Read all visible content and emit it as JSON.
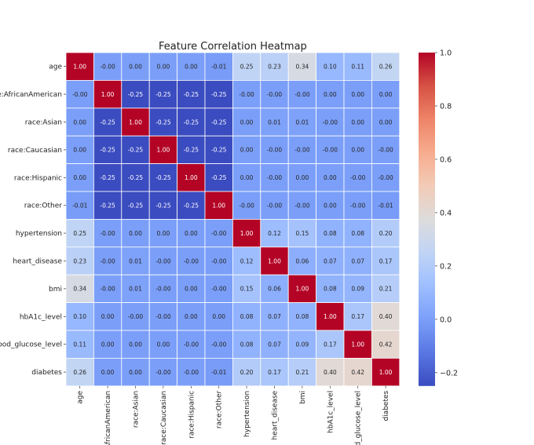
{
  "chart_data": {
    "type": "heatmap",
    "title": "Feature Correlation Heatmap",
    "row_labels": [
      "age",
      "race:AfricanAmerican",
      "race:Asian",
      "race:Caucasian",
      "race:Hispanic",
      "race:Other",
      "hypertension",
      "heart_disease",
      "bmi",
      "hbA1c_level",
      "blood_glucose_level",
      "diabetes"
    ],
    "col_labels": [
      "age",
      "race:AfricanAmerican",
      "race:Asian",
      "race:Caucasian",
      "race:Hispanic",
      "race:Other",
      "hypertension",
      "heart_disease",
      "bmi",
      "hbA1c_level",
      "blood_glucose_level",
      "diabetes"
    ],
    "values": [
      [
        1.0,
        -0.0,
        0.0,
        0.0,
        0.0,
        -0.01,
        0.25,
        0.23,
        0.34,
        0.1,
        0.11,
        0.26
      ],
      [
        -0.0,
        1.0,
        -0.25,
        -0.25,
        -0.25,
        -0.25,
        -0.0,
        -0.0,
        -0.0,
        0.0,
        0.0,
        0.0
      ],
      [
        0.0,
        -0.25,
        1.0,
        -0.25,
        -0.25,
        -0.25,
        0.0,
        0.01,
        0.01,
        -0.0,
        0.0,
        0.0
      ],
      [
        0.0,
        -0.25,
        -0.25,
        1.0,
        -0.25,
        -0.25,
        0.0,
        -0.0,
        -0.0,
        -0.0,
        0.0,
        -0.0
      ],
      [
        0.0,
        -0.25,
        -0.25,
        -0.25,
        1.0,
        -0.25,
        0.0,
        -0.0,
        0.0,
        0.0,
        -0.0,
        -0.0
      ],
      [
        -0.01,
        -0.25,
        -0.25,
        -0.25,
        -0.25,
        1.0,
        -0.0,
        -0.0,
        -0.0,
        0.0,
        -0.0,
        -0.01
      ],
      [
        0.25,
        -0.0,
        0.0,
        0.0,
        0.0,
        -0.0,
        1.0,
        0.12,
        0.15,
        0.08,
        0.08,
        0.2
      ],
      [
        0.23,
        -0.0,
        0.01,
        -0.0,
        -0.0,
        -0.0,
        0.12,
        1.0,
        0.06,
        0.07,
        0.07,
        0.17
      ],
      [
        0.34,
        -0.0,
        0.01,
        -0.0,
        0.0,
        -0.0,
        0.15,
        0.06,
        1.0,
        0.08,
        0.09,
        0.21
      ],
      [
        0.1,
        0.0,
        -0.0,
        -0.0,
        0.0,
        0.0,
        0.08,
        0.07,
        0.08,
        1.0,
        0.17,
        0.4
      ],
      [
        0.11,
        0.0,
        0.0,
        0.0,
        -0.0,
        -0.0,
        0.08,
        0.07,
        0.09,
        0.17,
        1.0,
        0.42
      ],
      [
        0.26,
        0.0,
        0.0,
        -0.0,
        -0.0,
        -0.01,
        0.2,
        0.17,
        0.21,
        0.4,
        0.42,
        1.0
      ]
    ],
    "colormap": "coolwarm",
    "colormap_stops": [
      "#3b4cc0",
      "#5977e3",
      "#7b9ff9",
      "#9ebeff",
      "#c0d4f5",
      "#dddcdc",
      "#f2cbb7",
      "#f7ac8e",
      "#ee8468",
      "#d65244",
      "#b40426"
    ],
    "vmin": -0.25,
    "vmax": 1.0,
    "colorbar_ticks": [
      -0.2,
      0.0,
      0.2,
      0.4,
      0.6,
      0.8,
      1.0
    ],
    "colorbar_tick_labels": [
      "−0.2",
      "0.0",
      "0.2",
      "0.4",
      "0.6",
      "0.8",
      "1.0"
    ],
    "annotation_format": "2 decimals",
    "grid": false
  }
}
